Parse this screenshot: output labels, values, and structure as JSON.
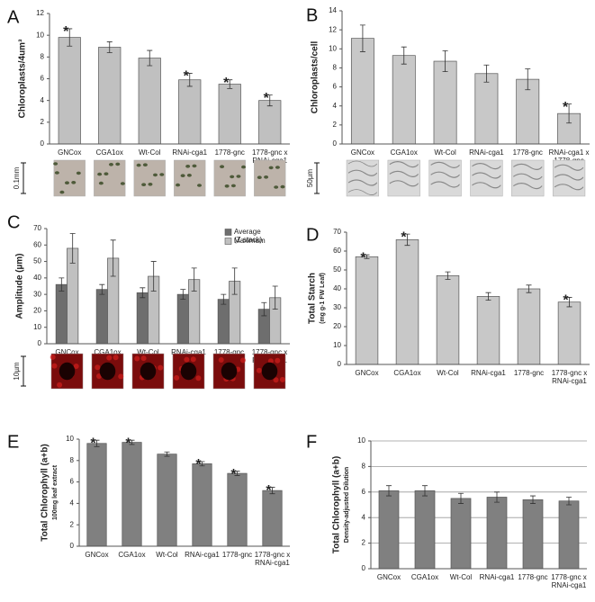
{
  "chart_data": [
    {
      "type": "bar",
      "label": "A",
      "ylabel": "Chloroplasts/4um³",
      "categories": [
        "GNCox",
        "CGA1ox",
        "Wt-Col",
        "RNAi-cga1",
        "1778-gnc",
        "1778-gnc x\nRNAi-cga1"
      ],
      "values": [
        9.8,
        8.9,
        7.9,
        5.9,
        5.5,
        4.0
      ],
      "errors": [
        0.8,
        0.5,
        0.7,
        0.6,
        0.4,
        0.5
      ],
      "markers": [
        "*",
        null,
        null,
        "*",
        "*",
        "*"
      ],
      "color": "#c0c0c0",
      "ylim": [
        0,
        12
      ],
      "yticks": [
        0,
        2,
        4,
        6,
        8,
        10,
        12
      ],
      "grid": false,
      "scale_label": "0.1mm"
    },
    {
      "type": "bar",
      "label": "B",
      "ylabel": "Chloroplasts/cell",
      "categories": [
        "GNCox",
        "CGA1ox",
        "Wt-Col",
        "RNAi-cga1",
        "1778-gnc",
        "RNAi-cga1 x\n1778-gnc"
      ],
      "values": [
        11.1,
        9.3,
        8.7,
        7.4,
        6.8,
        3.2
      ],
      "errors": [
        1.4,
        0.9,
        1.1,
        0.9,
        1.1,
        1.0
      ],
      "markers": [
        null,
        null,
        null,
        null,
        null,
        "*"
      ],
      "color": "#c8c8c8",
      "ylim": [
        0,
        14
      ],
      "yticks": [
        0,
        2,
        4,
        6,
        8,
        10,
        12,
        14
      ],
      "grid": false,
      "scale_label": "50µm"
    },
    {
      "type": "bar",
      "label": "C",
      "ylabel": "Amplitude (µm)",
      "categories": [
        "GNCox",
        "CGA1ox",
        "Wt-Col",
        "RNAi-cga1",
        "1778-gnc",
        "1778-gnc x\nRNAi-cga1"
      ],
      "series": [
        {
          "name": "Average\n(Z stack)",
          "color": "#6e6e6e",
          "values": [
            36,
            33,
            31,
            30,
            27,
            21
          ],
          "errors": [
            4,
            3,
            3,
            3,
            3,
            4
          ]
        },
        {
          "name": "Maximum",
          "color": "#c0c0c0",
          "values": [
            58,
            52,
            41,
            39,
            38,
            28
          ],
          "errors": [
            9,
            11,
            9,
            7,
            8,
            7
          ]
        }
      ],
      "ylim": [
        0,
        70
      ],
      "yticks": [
        0,
        10,
        20,
        30,
        40,
        50,
        60,
        70
      ],
      "grid": false,
      "legend": "top-right",
      "scale_label": "10µm"
    },
    {
      "type": "bar",
      "label": "D",
      "ylabel": "Total Starch",
      "ylabel_sub": "(mg g-1 FW Leaf)",
      "categories": [
        "GNCox",
        "CGA1ox",
        "Wt-Col",
        "RNAi-cga1",
        "1778-gnc",
        "1778-gnc x\nRNAi-cga1"
      ],
      "values": [
        57,
        66,
        47,
        36,
        40,
        33
      ],
      "errors": [
        1,
        3,
        2,
        2,
        2,
        2.5
      ],
      "markers": [
        "*",
        "*",
        null,
        null,
        null,
        "*"
      ],
      "color": "#c8c8c8",
      "ylim": [
        0,
        70
      ],
      "yticks": [
        0,
        10,
        20,
        30,
        40,
        50,
        60,
        70
      ],
      "grid": false
    },
    {
      "type": "bar",
      "label": "E",
      "ylabel": "Total Chlorophyll (a+b)",
      "ylabel_sub": "100mg leaf extract",
      "categories": [
        "GNCox",
        "CGA1ox",
        "Wt-Col",
        "RNAi-cga1",
        "1778-gnc",
        "1778-gnc x\nRNAi-cga1"
      ],
      "values": [
        9.6,
        9.7,
        8.6,
        7.7,
        6.8,
        5.2
      ],
      "errors": [
        0.3,
        0.2,
        0.2,
        0.2,
        0.2,
        0.3
      ],
      "markers": [
        "*",
        "*",
        null,
        "*",
        "*",
        "*"
      ],
      "color": "#808080",
      "ylim": [
        0,
        10
      ],
      "yticks": [
        0,
        2,
        4,
        6,
        8,
        10
      ],
      "grid": false
    },
    {
      "type": "bar",
      "label": "F",
      "ylabel": "Total Chlorophyll (a+b)",
      "ylabel_sub": "Density-adjusted Dilution",
      "categories": [
        "GNCox",
        "CGA1ox",
        "Wt-Col",
        "RNAi-cga1",
        "1778-gnc",
        "1778-gnc x\nRNAi-cga1"
      ],
      "values": [
        6.1,
        6.1,
        5.5,
        5.6,
        5.4,
        5.3
      ],
      "errors": [
        0.4,
        0.4,
        0.4,
        0.4,
        0.3,
        0.3
      ],
      "color": "#808080",
      "ylim": [
        0,
        10
      ],
      "yticks": [
        0,
        2,
        4,
        6,
        8,
        10
      ],
      "grid": true
    }
  ]
}
